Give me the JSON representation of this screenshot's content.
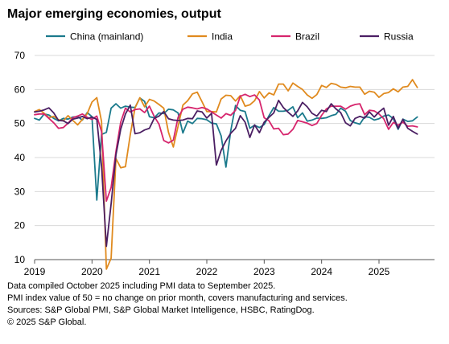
{
  "chart_data": {
    "type": "line",
    "title": "Major emerging economies, output",
    "xlabel": "",
    "ylabel": "",
    "ylim": [
      10,
      70
    ],
    "yticks": [
      10,
      20,
      30,
      40,
      50,
      60,
      70
    ],
    "x_start": "2019-01",
    "x_end": "2025-09",
    "xticks": [
      "2019",
      "2020",
      "2021",
      "2022",
      "2023",
      "2024",
      "2025"
    ],
    "reference_line": 50,
    "grid": "horizontal",
    "legend_position": "top",
    "series": [
      {
        "name": "China (mainland)",
        "color": "#1b7a8c",
        "values": [
          51.5,
          51.0,
          52.8,
          52.5,
          51.5,
          50.8,
          51.5,
          51.3,
          51.9,
          52.0,
          51.0,
          53.2,
          52.0,
          27.5,
          46.8,
          47.4,
          54.5,
          55.8,
          54.5,
          55.1,
          54.8,
          54.7,
          57.5,
          56.5,
          52.0,
          51.7,
          53.1,
          52.9,
          54.2,
          54.0,
          53.1,
          47.2,
          50.7,
          50.0,
          51.5,
          51.4,
          51.1,
          50.1,
          49.9,
          46.4,
          37.2,
          47.8,
          55.3,
          53.9,
          53.5,
          48.6,
          49.5,
          48.8,
          49.7,
          52.3,
          54.7,
          53.6,
          53.6,
          53.9,
          54.9,
          51.7,
          53.1,
          50.7,
          51.0,
          51.6,
          51.5,
          51.7,
          52.3,
          52.7,
          54.5,
          53.6,
          50.9,
          50.2,
          49.8,
          52.0,
          51.8,
          51.0,
          51.4,
          52.2,
          52.5,
          51.4,
          48.3,
          51.3,
          50.6,
          50.8,
          51.9,
          51.8,
          52.5
        ]
      },
      {
        "name": "India",
        "color": "#e08a1e",
        "values": [
          53.5,
          54.1,
          53.0,
          51.7,
          52.1,
          51.1,
          50.8,
          52.3,
          50.9,
          49.6,
          51.2,
          52.9,
          56.3,
          57.6,
          50.6,
          7.2,
          10.4,
          39.7,
          37.0,
          37.3,
          46.7,
          54.6,
          57.6,
          54.9,
          57.1,
          56.6,
          55.6,
          54.5,
          47.4,
          43.1,
          49.2,
          55.4,
          56.7,
          58.7,
          59.2,
          56.4,
          53.5,
          53.5,
          53.4,
          57.2,
          58.3,
          58.2,
          56.6,
          58.2,
          55.1,
          55.5,
          56.7,
          59.4,
          57.5,
          59.0,
          58.4,
          61.6,
          61.6,
          59.6,
          61.9,
          60.9,
          60.0,
          58.4,
          57.4,
          58.5,
          61.2,
          60.6,
          61.8,
          61.5,
          60.7,
          60.5,
          60.9,
          60.7,
          60.7,
          58.6,
          59.5,
          59.2,
          57.7,
          58.8,
          59.1,
          60.2,
          59.3,
          60.7,
          60.9,
          62.9,
          60.6,
          63.2,
          60.9
        ]
      },
      {
        "name": "Brazil",
        "color": "#d6256d",
        "values": [
          52.6,
          52.8,
          52.8,
          51.5,
          50.2,
          48.6,
          48.8,
          50.1,
          51.7,
          52.2,
          52.8,
          51.8,
          51.2,
          52.2,
          47.6,
          27.2,
          31.2,
          41.8,
          50.4,
          54.5,
          53.4,
          54.1,
          54.3,
          53.2,
          55.1,
          52.1,
          49.8,
          45.0,
          44.3,
          45.1,
          51.8,
          54.2,
          54.8,
          54.6,
          54.3,
          54.7,
          54.3,
          53.4,
          52.5,
          51.6,
          52.9,
          52.4,
          53.9,
          58.0,
          58.6,
          57.9,
          58.4,
          56.9,
          51.7,
          50.8,
          48.4,
          48.6,
          46.7,
          46.9,
          48.3,
          50.9,
          50.5,
          50.1,
          49.4,
          50.0,
          52.4,
          54.3,
          55.1,
          55.1,
          55.1,
          54.2,
          55.1,
          55.6,
          55.8,
          52.6,
          53.9,
          53.7,
          52.8,
          51.4,
          48.3,
          50.3,
          49.5,
          50.4,
          49.2,
          49.3,
          49.0,
          49.2,
          47.1
        ]
      },
      {
        "name": "Russia",
        "color": "#4b1f63",
        "values": [
          53.4,
          53.6,
          54.0,
          54.6,
          53.1,
          50.9,
          50.8,
          50.0,
          51.3,
          51.6,
          52.1,
          51.4,
          51.9,
          51.2,
          37.5,
          13.9,
          26.4,
          40.8,
          48.3,
          52.8,
          55.4,
          47.0,
          47.3,
          48.1,
          48.6,
          51.5,
          52.2,
          53.5,
          51.4,
          51.0,
          50.9,
          51.0,
          51.5,
          51.4,
          53.7,
          53.4,
          51.6,
          53.0,
          37.8,
          42.1,
          44.9,
          47.1,
          48.6,
          52.3,
          50.4,
          45.9,
          49.6,
          47.3,
          50.4,
          51.8,
          53.1,
          56.8,
          54.7,
          53.3,
          52.1,
          53.7,
          56.2,
          54.9,
          53.0,
          52.2,
          53.9,
          53.5,
          55.8,
          54.3,
          53.2,
          50.2,
          49.3,
          51.5,
          52.1,
          51.6,
          53.4,
          51.9,
          53.4,
          54.5,
          49.5,
          52.1,
          48.6,
          51.2,
          48.6,
          47.7,
          46.9,
          48.8,
          46.3
        ]
      }
    ]
  },
  "footnotes": [
    "Data compiled October 2025 including PMI data to September 2025.",
    "PMI index value of 50 = no change on prior month, covers manufacturing and services.",
    "Sources: S&P Global PMI, S&P Global Market Intelligence, HSBC, RatingDog.",
    "© 2025 S&P Global."
  ]
}
